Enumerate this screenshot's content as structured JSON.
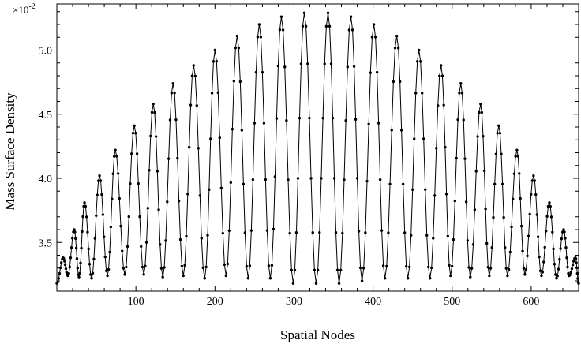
{
  "chart_data": {
    "type": "line",
    "title": "",
    "xlabel": "Spatial Nodes",
    "ylabel": "Mass Surface Density",
    "y_multiplier_label": "×10",
    "y_multiplier_exponent": "-2",
    "xlim": [
      0,
      660
    ],
    "ylim": [
      3.12,
      5.36
    ],
    "x_ticks": [
      100,
      200,
      300,
      400,
      500,
      600
    ],
    "x_tick_labels": [
      "100",
      "200",
      "300",
      "400",
      "500",
      "600"
    ],
    "y_ticks": [
      3.5,
      4.0,
      4.5,
      5.0
    ],
    "y_tick_labels": [
      "3.5",
      "4.0",
      "4.5",
      "5.0"
    ],
    "grid": false,
    "marker": "dot",
    "series": [
      {
        "name": "",
        "color": "#000000",
        "peaks": {
          "x": [
            8,
            22,
            35,
            54,
            74,
            98,
            122,
            147,
            173,
            200,
            228,
            256,
            284,
            313,
            343,
            372,
            401,
            430,
            458,
            486,
            511,
            536,
            559,
            582,
            603,
            623,
            641,
            656
          ],
          "y": [
            3.38,
            3.6,
            3.81,
            4.02,
            4.22,
            4.41,
            4.58,
            4.74,
            4.88,
            5.0,
            5.11,
            5.2,
            5.26,
            5.29,
            5.29,
            5.26,
            5.2,
            5.11,
            5.0,
            4.88,
            4.74,
            4.58,
            4.41,
            4.22,
            4.02,
            3.81,
            3.6,
            3.38
          ]
        },
        "troughs": {
          "x": [
            0,
            14,
            28,
            44,
            64,
            86,
            110,
            134,
            160,
            187,
            214,
            242,
            270,
            299,
            328,
            357,
            386,
            415,
            444,
            472,
            498,
            523,
            547,
            570,
            592,
            613,
            632,
            648,
            660
          ],
          "y": [
            3.18,
            3.24,
            3.23,
            3.22,
            3.24,
            3.25,
            3.25,
            3.23,
            3.24,
            3.22,
            3.24,
            3.22,
            3.22,
            3.18,
            3.18,
            3.18,
            3.2,
            3.22,
            3.22,
            3.22,
            3.24,
            3.23,
            3.24,
            3.24,
            3.25,
            3.24,
            3.22,
            3.24,
            3.18
          ]
        }
      }
    ]
  }
}
